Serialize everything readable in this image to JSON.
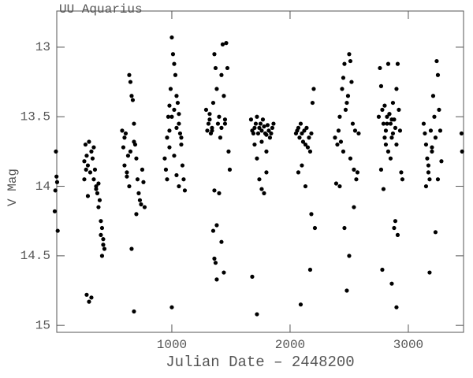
{
  "chart_data": {
    "type": "scatter",
    "title": "UU Aquarius",
    "xlabel": "Julian Date – 2448200",
    "ylabel": "V Mag",
    "color": "#000000",
    "y_inverted": true,
    "xlim": [
      27,
      3467
    ],
    "ylim": [
      12.74,
      15.05
    ],
    "xticks": [
      1000,
      2000,
      3000
    ],
    "yticks": [
      13,
      13.5,
      14,
      14.5,
      15
    ],
    "x": [
      20,
      25,
      30,
      15,
      10,
      35,
      260,
      270,
      280,
      290,
      300,
      310,
      320,
      330,
      340,
      350,
      360,
      370,
      380,
      390,
      400,
      410,
      420,
      430,
      280,
      300,
      320,
      340,
      360,
      380,
      400,
      410,
      420,
      260,
      275,
      290,
      580,
      590,
      600,
      610,
      620,
      630,
      640,
      650,
      660,
      670,
      680,
      690,
      700,
      710,
      720,
      730,
      740,
      750,
      760,
      770,
      600,
      620,
      640,
      660,
      680,
      700,
      650,
      680,
      940,
      950,
      960,
      970,
      980,
      990,
      1000,
      1010,
      1020,
      1030,
      1040,
      1050,
      1060,
      1070,
      1080,
      1090,
      1100,
      1110,
      960,
      980,
      1000,
      1020,
      1040,
      1060,
      1080,
      1000,
      1020,
      1040,
      1060,
      980,
      1290,
      1300,
      1310,
      1320,
      1330,
      1340,
      1350,
      1360,
      1370,
      1380,
      1390,
      1400,
      1410,
      1420,
      1430,
      1440,
      1450,
      1460,
      1470,
      1480,
      1490,
      1320,
      1340,
      1360,
      1380,
      1400,
      1420,
      1440,
      1360,
      1370,
      1380,
      1420,
      1450,
      1350,
      1670,
      1680,
      1690,
      1700,
      1710,
      1720,
      1730,
      1740,
      1750,
      1760,
      1770,
      1780,
      1790,
      1800,
      1810,
      1820,
      1830,
      1840,
      1850,
      1860,
      1700,
      1720,
      1740,
      1760,
      1780,
      1800,
      1680,
      1720,
      1760,
      1800,
      2050,
      2060,
      2070,
      2080,
      2090,
      2100,
      2110,
      2120,
      2130,
      2140,
      2150,
      2160,
      2170,
      2180,
      2190,
      2200,
      2210,
      2070,
      2100,
      2130,
      2180,
      2090,
      2170,
      2380,
      2390,
      2400,
      2410,
      2420,
      2430,
      2440,
      2450,
      2460,
      2470,
      2480,
      2490,
      2500,
      2510,
      2520,
      2530,
      2540,
      2550,
      2560,
      2570,
      2580,
      2420,
      2460,
      2500,
      2480,
      2510,
      2540,
      2450,
      2750,
      2760,
      2770,
      2780,
      2790,
      2800,
      2810,
      2820,
      2830,
      2840,
      2850,
      2860,
      2870,
      2880,
      2890,
      2900,
      2910,
      2920,
      2930,
      2940,
      2950,
      2770,
      2790,
      2810,
      2830,
      2850,
      2870,
      2890,
      2910,
      2800,
      2820,
      2840,
      2860,
      2880,
      2900,
      2780,
      2860,
      2900,
      3130,
      3140,
      3150,
      3160,
      3170,
      3180,
      3190,
      3200,
      3210,
      3220,
      3230,
      3240,
      3250,
      3260,
      3270,
      3280,
      3150,
      3170,
      3200,
      3230,
      3250,
      3180,
      3450,
      3455
    ],
    "values": [
      13.75,
      13.93,
      13.97,
      14.03,
      14.18,
      14.32,
      13.82,
      13.7,
      13.78,
      13.85,
      13.68,
      13.9,
      13.75,
      13.8,
      13.95,
      13.88,
      14.0,
      14.05,
      13.98,
      14.1,
      14.25,
      14.3,
      14.38,
      14.45,
      14.78,
      14.83,
      14.8,
      13.72,
      14.02,
      14.15,
      14.35,
      14.5,
      14.42,
      13.95,
      13.88,
      14.07,
      13.6,
      13.72,
      13.85,
      13.62,
      13.9,
      13.78,
      13.2,
      13.25,
      13.35,
      13.38,
      13.55,
      13.7,
      13.8,
      13.95,
      14.05,
      14.1,
      14.13,
      13.88,
      13.97,
      14.15,
      13.65,
      13.93,
      14.0,
      14.45,
      14.9,
      14.2,
      13.75,
      13.68,
      13.8,
      13.88,
      13.65,
      13.5,
      13.42,
      13.3,
      12.93,
      13.05,
      13.12,
      13.2,
      13.35,
      13.4,
      13.55,
      13.62,
      13.7,
      13.85,
      13.95,
      14.03,
      13.95,
      13.6,
      13.5,
      13.45,
      13.58,
      13.48,
      13.65,
      14.87,
      13.78,
      13.92,
      14.0,
      13.72,
      13.45,
      13.6,
      13.55,
      13.52,
      13.62,
      13.58,
      13.4,
      13.05,
      13.15,
      13.3,
      13.55,
      13.5,
      13.65,
      13.2,
      12.98,
      13.35,
      13.55,
      12.97,
      13.15,
      13.75,
      13.88,
      13.48,
      13.6,
      14.03,
      14.28,
      14.05,
      14.4,
      14.62,
      14.52,
      14.55,
      14.67,
      13.58,
      13.52,
      14.32,
      13.52,
      13.6,
      13.62,
      13.58,
      13.55,
      13.5,
      13.62,
      13.58,
      13.55,
      13.6,
      13.52,
      13.57,
      13.62,
      13.63,
      13.56,
      13.6,
      13.65,
      13.62,
      13.58,
      13.55,
      13.7,
      13.8,
      13.95,
      14.02,
      14.05,
      13.75,
      14.65,
      14.92,
      13.68,
      13.9,
      13.62,
      13.6,
      13.58,
      13.65,
      13.55,
      13.62,
      13.68,
      13.6,
      13.7,
      13.58,
      13.72,
      13.65,
      13.75,
      13.62,
      13.4,
      13.3,
      14.3,
      13.9,
      13.85,
      14.0,
      14.2,
      14.85,
      14.6,
      13.65,
      13.98,
      13.7,
      13.6,
      13.5,
      13.68,
      13.3,
      13.22,
      13.12,
      13.45,
      13.4,
      13.35,
      13.05,
      13.1,
      13.25,
      13.55,
      13.88,
      13.6,
      13.95,
      13.9,
      13.62,
      14.0,
      14.3,
      14.5,
      14.75,
      13.8,
      14.15,
      13.75,
      13.5,
      13.15,
      13.28,
      13.45,
      13.55,
      13.42,
      13.6,
      13.5,
      13.12,
      13.48,
      13.55,
      13.65,
      13.4,
      13.52,
      13.58,
      13.3,
      13.12,
      13.45,
      13.6,
      13.9,
      13.95,
      13.88,
      14.02,
      13.7,
      13.75,
      13.8,
      13.62,
      14.25,
      14.35,
      13.65,
      13.55,
      13.48,
      13.52,
      14.3,
      13.7,
      14.6,
      14.7,
      14.87,
      13.55,
      13.62,
      13.7,
      13.8,
      13.9,
      13.95,
      13.6,
      13.72,
      13.35,
      13.5,
      13.65,
      13.1,
      13.2,
      13.45,
      13.6,
      13.82,
      14.0,
      13.85,
      13.75,
      14.33,
      13.95,
      14.62,
      13.62,
      13.75
    ]
  }
}
